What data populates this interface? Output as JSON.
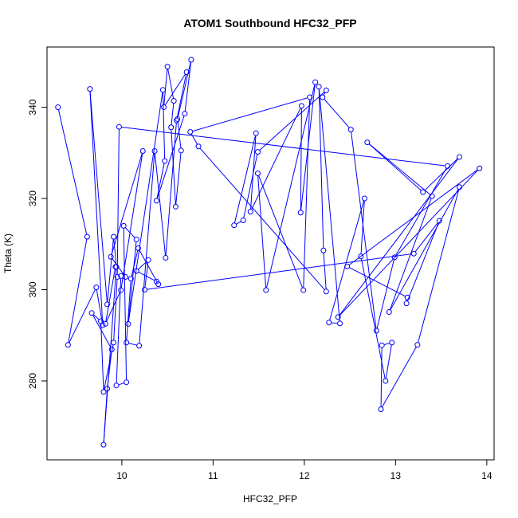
{
  "chart_data": {
    "type": "line",
    "title": "ATOM1 Southbound HFC32_PFP",
    "xlabel": "HFC32_PFP",
    "ylabel": "Theta (K)",
    "xlim": [
      9.18,
      14.08
    ],
    "ylim": [
      262.7,
      353.2
    ],
    "x_ticks": [
      10,
      11,
      12,
      13,
      14
    ],
    "y_ticks": [
      280,
      300,
      320,
      340
    ],
    "grid": false,
    "series_color": "#0000ff",
    "markers": "open-circle",
    "points": [
      [
        9.3,
        340.0
      ],
      [
        9.62,
        311.6
      ],
      [
        9.41,
        287.9
      ],
      [
        9.72,
        300.5
      ],
      [
        9.79,
        292.2
      ],
      [
        9.65,
        344.0
      ],
      [
        9.84,
        296.8
      ],
      [
        9.91,
        311.6
      ],
      [
        9.94,
        305.0
      ],
      [
        9.8,
        266.0
      ],
      [
        9.84,
        278.3
      ],
      [
        9.89,
        286.9
      ],
      [
        9.67,
        294.9
      ],
      [
        9.77,
        293.1
      ],
      [
        9.8,
        277.6
      ],
      [
        9.91,
        288.4
      ],
      [
        9.95,
        302.8
      ],
      [
        9.97,
        335.7
      ],
      [
        13.57,
        327.1
      ],
      [
        12.99,
        307.1
      ],
      [
        12.79,
        291.0
      ],
      [
        12.51,
        335.1
      ],
      [
        12.2,
        342.2
      ],
      [
        12.24,
        343.7
      ],
      [
        11.49,
        330.2
      ],
      [
        11.33,
        315.2
      ],
      [
        11.23,
        314.1
      ],
      [
        11.47,
        334.3
      ],
      [
        11.41,
        317.1
      ],
      [
        11.97,
        340.3
      ],
      [
        11.96,
        316.9
      ],
      [
        12.12,
        345.5
      ],
      [
        11.58,
        299.9
      ],
      [
        11.49,
        325.5
      ],
      [
        11.99,
        299.9
      ],
      [
        12.06,
        342.2
      ],
      [
        10.75,
        334.6
      ],
      [
        10.84,
        331.4
      ],
      [
        12.24,
        299.6
      ],
      [
        12.21,
        308.6
      ],
      [
        12.16,
        344.5
      ],
      [
        12.39,
        292.6
      ],
      [
        12.27,
        292.8
      ],
      [
        12.66,
        320.0
      ],
      [
        12.62,
        307.3
      ],
      [
        12.89,
        280.0
      ],
      [
        12.96,
        288.4
      ],
      [
        12.85,
        287.8
      ],
      [
        12.84,
        273.8
      ],
      [
        13.24,
        287.9
      ],
      [
        13.7,
        322.5
      ],
      [
        12.93,
        295.1
      ],
      [
        13.4,
        320.5
      ],
      [
        12.69,
        332.3
      ],
      [
        13.3,
        321.4
      ],
      [
        13.7,
        329.1
      ],
      [
        12.37,
        294.0
      ],
      [
        13.92,
        326.6
      ],
      [
        12.47,
        305.1
      ],
      [
        13.13,
        298.3
      ],
      [
        13.12,
        297.0
      ],
      [
        13.48,
        315.1
      ],
      [
        13.2,
        307.9
      ],
      [
        10.25,
        300.0
      ],
      [
        10.29,
        306.5
      ],
      [
        10.16,
        304.1
      ],
      [
        10.38,
        301.8
      ],
      [
        10.4,
        301.2
      ],
      [
        10.18,
        309.1
      ],
      [
        10.1,
        302.4
      ],
      [
        10.05,
        288.4
      ],
      [
        10.19,
        287.7
      ],
      [
        10.36,
        330.4
      ],
      [
        10.48,
        307.0
      ],
      [
        10.6,
        337.1
      ],
      [
        10.71,
        347.7
      ],
      [
        10.46,
        340.0
      ],
      [
        10.5,
        348.9
      ],
      [
        10.57,
        341.4
      ],
      [
        10.54,
        335.6
      ],
      [
        10.59,
        318.2
      ],
      [
        10.65,
        330.5
      ],
      [
        10.61,
        337.4
      ],
      [
        10.76,
        350.4
      ],
      [
        10.69,
        338.6
      ],
      [
        10.38,
        319.5
      ],
      [
        10.47,
        328.2
      ],
      [
        10.45,
        343.8
      ],
      [
        10.07,
        292.5
      ],
      [
        10.16,
        311.0
      ],
      [
        10.02,
        314.0
      ],
      [
        10.05,
        279.7
      ],
      [
        9.94,
        279.0
      ],
      [
        9.99,
        303.0
      ],
      [
        10.04,
        302.8
      ],
      [
        9.88,
        307.2
      ],
      [
        10.23,
        330.4
      ],
      [
        9.99,
        299.9
      ],
      [
        9.82,
        292.5
      ],
      [
        9.93,
        305.0
      ]
    ]
  }
}
